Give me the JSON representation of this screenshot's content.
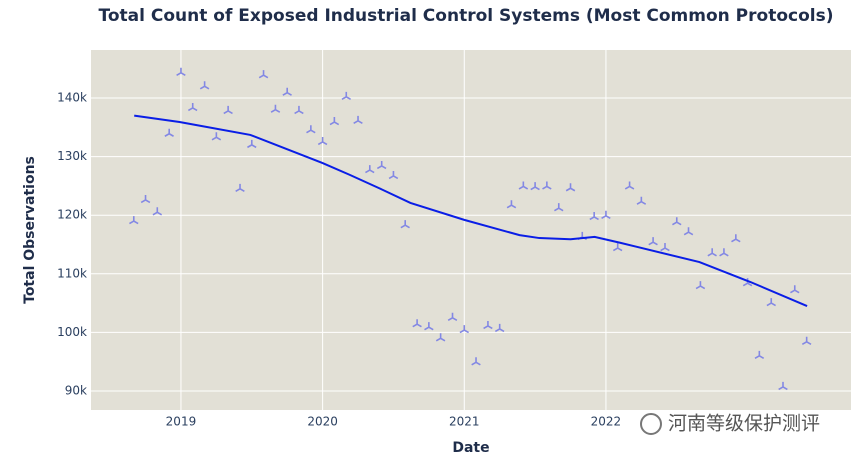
{
  "chart_data": {
    "type": "scatter",
    "title": "Total Count of Exposed Industrial Control Systems (Most Common Protocols)",
    "x_label": "Date",
    "y_label": "Total Observations",
    "watermark": "河南等级保护测评",
    "xlim": [
      2018.365,
      2023.73
    ],
    "xticks": [
      2019,
      2020,
      2021,
      2022
    ],
    "ylim": [
      86760,
      148190
    ],
    "yticks": [
      {
        "value": 90000,
        "label": "90k"
      },
      {
        "value": 100000,
        "label": "100k"
      },
      {
        "value": 110000,
        "label": "110k"
      },
      {
        "value": 120000,
        "label": "120k"
      },
      {
        "value": 130000,
        "label": "130k"
      },
      {
        "value": 140000,
        "label": "140k"
      }
    ],
    "grid": true,
    "background": "#e2e0d6",
    "series": [
      {
        "type": "scatter",
        "color": "#8388e4",
        "x": [
          2018.667,
          2018.75,
          2018.833,
          2018.917,
          2019.0,
          2019.083,
          2019.167,
          2019.25,
          2019.333,
          2019.417,
          2019.5,
          2019.583,
          2019.667,
          2019.75,
          2019.833,
          2019.917,
          2020.0,
          2020.083,
          2020.167,
          2020.25,
          2020.333,
          2020.417,
          2020.5,
          2020.583,
          2020.667,
          2020.75,
          2020.833,
          2020.917,
          2021.0,
          2021.083,
          2021.167,
          2021.25,
          2021.333,
          2021.417,
          2021.5,
          2021.583,
          2021.667,
          2021.75,
          2021.833,
          2021.917,
          2022.0,
          2022.083,
          2022.167,
          2022.25,
          2022.333,
          2022.417,
          2022.5,
          2022.583,
          2022.667,
          2022.75,
          2022.833,
          2022.917,
          2023.0,
          2023.083,
          2023.167,
          2023.25,
          2023.333,
          2023.417
        ],
        "values": [
          119000,
          122600,
          120500,
          133900,
          144300,
          138300,
          142000,
          133300,
          137800,
          124500,
          132000,
          143900,
          138000,
          140900,
          137800,
          134500,
          132500,
          135900,
          140200,
          136100,
          127700,
          128400,
          126700,
          118300,
          101400,
          100900,
          99000,
          102500,
          100400,
          94900,
          101100,
          100600,
          121700,
          124900,
          124800,
          124900,
          121200,
          124600,
          116300,
          119700,
          119900,
          114400,
          124900,
          122300,
          115400,
          114400,
          118800,
          117100,
          107900,
          113500,
          113500,
          115900,
          108400,
          96000,
          105000,
          90700,
          107200,
          98400
        ]
      },
      {
        "type": "line",
        "color": "#0a1ee6",
        "x": [
          2018.67,
          2018.99,
          2019.49,
          2020.0,
          2020.19,
          2020.4,
          2020.62,
          2021.0,
          2021.39,
          2021.53,
          2021.75,
          2021.92,
          2022.1,
          2022.66,
          2023.02,
          2023.42
        ],
        "values": [
          137000,
          135900,
          133700,
          128900,
          126900,
          124600,
          122100,
          119200,
          116600,
          116100,
          115900,
          116300,
          115300,
          112000,
          108600,
          104500
        ]
      }
    ]
  }
}
